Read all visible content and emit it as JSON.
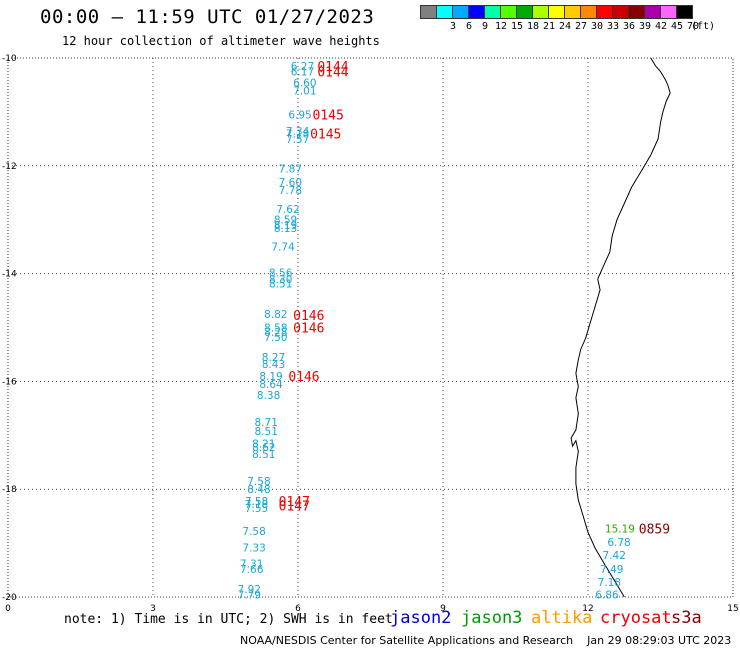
{
  "header": {
    "title": "00:00 – 11:59 UTC 01/27/2023",
    "subtitle": "12 hour collection of altimeter wave heights"
  },
  "legend": {
    "swatches": [
      {
        "color": "#808080",
        "label": ""
      },
      {
        "color": "#00ffff",
        "label": "3"
      },
      {
        "color": "#00aaff",
        "label": "6"
      },
      {
        "color": "#0000ff",
        "label": "9"
      },
      {
        "color": "#00ffaa",
        "label": "12"
      },
      {
        "color": "#55ff00",
        "label": "15"
      },
      {
        "color": "#00aa00",
        "label": "18"
      },
      {
        "color": "#aaff00",
        "label": "21"
      },
      {
        "color": "#ffff00",
        "label": "24"
      },
      {
        "color": "#ffcc00",
        "label": "27"
      },
      {
        "color": "#ff8800",
        "label": "30"
      },
      {
        "color": "#ff0000",
        "label": "33"
      },
      {
        "color": "#cc0000",
        "label": "36"
      },
      {
        "color": "#880000",
        "label": "39"
      },
      {
        "color": "#aa00aa",
        "label": "42"
      },
      {
        "color": "#ff66ff",
        "label": "45"
      },
      {
        "color": "#000000",
        "label": "70"
      }
    ],
    "unit": "(ft)"
  },
  "axes": {
    "x_ticks": [
      "0",
      "3",
      "6",
      "9",
      "12",
      "15"
    ],
    "y_ticks": [
      "-10",
      "-12",
      "-14",
      "-16",
      "-18",
      "-20"
    ]
  },
  "chart_data": {
    "type": "scatter",
    "xlim": [
      0,
      15
    ],
    "ylim": [
      -20,
      -10
    ],
    "grid": true,
    "points": [
      {
        "x": 5.85,
        "y": -10.15,
        "v": "6.27"
      },
      {
        "x": 5.85,
        "y": -10.25,
        "v": "6.17"
      },
      {
        "x": 5.9,
        "y": -10.45,
        "v": "6.60"
      },
      {
        "x": 5.9,
        "y": -10.6,
        "v": "7.01"
      },
      {
        "x": 5.8,
        "y": -11.05,
        "v": "6.95"
      },
      {
        "x": 5.75,
        "y": -11.35,
        "v": "7.34"
      },
      {
        "x": 5.75,
        "y": -11.4,
        "v": "7.18"
      },
      {
        "x": 5.75,
        "y": -11.5,
        "v": "7.57"
      },
      {
        "x": 5.6,
        "y": -12.05,
        "v": "7.87"
      },
      {
        "x": 5.6,
        "y": -12.3,
        "v": "7.60"
      },
      {
        "x": 5.6,
        "y": -12.45,
        "v": "7.78"
      },
      {
        "x": 5.55,
        "y": -12.8,
        "v": "7.62"
      },
      {
        "x": 5.5,
        "y": -13.0,
        "v": "8.59"
      },
      {
        "x": 5.5,
        "y": -13.1,
        "v": "8.19"
      },
      {
        "x": 5.5,
        "y": -13.15,
        "v": "8.13"
      },
      {
        "x": 5.45,
        "y": -13.5,
        "v": "7.74"
      },
      {
        "x": 5.4,
        "y": -13.98,
        "v": "8.56"
      },
      {
        "x": 5.4,
        "y": -14.1,
        "v": "8.30"
      },
      {
        "x": 5.4,
        "y": -14.18,
        "v": "8.51"
      },
      {
        "x": 5.3,
        "y": -14.75,
        "v": "8.82"
      },
      {
        "x": 5.3,
        "y": -15.0,
        "v": "8.58"
      },
      {
        "x": 5.3,
        "y": -15.08,
        "v": "8.28"
      },
      {
        "x": 5.3,
        "y": -15.18,
        "v": "7.50"
      },
      {
        "x": 5.25,
        "y": -15.55,
        "v": "8.27"
      },
      {
        "x": 5.25,
        "y": -15.68,
        "v": "8.43"
      },
      {
        "x": 5.2,
        "y": -15.9,
        "v": "8.19"
      },
      {
        "x": 5.2,
        "y": -16.05,
        "v": "8.64"
      },
      {
        "x": 5.15,
        "y": -16.25,
        "v": "8.38"
      },
      {
        "x": 5.1,
        "y": -16.75,
        "v": "8.71"
      },
      {
        "x": 5.1,
        "y": -16.92,
        "v": "8.51"
      },
      {
        "x": 5.05,
        "y": -17.15,
        "v": "8.21"
      },
      {
        "x": 5.05,
        "y": -17.22,
        "v": "8.62"
      },
      {
        "x": 5.05,
        "y": -17.35,
        "v": "8.51"
      },
      {
        "x": 4.95,
        "y": -17.85,
        "v": "7.58"
      },
      {
        "x": 4.95,
        "y": -18.0,
        "v": "8.48"
      },
      {
        "x": 4.9,
        "y": -18.22,
        "v": "7.58"
      },
      {
        "x": 4.9,
        "y": -18.27,
        "v": "7.18"
      },
      {
        "x": 4.9,
        "y": -18.35,
        "v": "7.55"
      },
      {
        "x": 4.85,
        "y": -18.78,
        "v": "7.58"
      },
      {
        "x": 4.85,
        "y": -19.08,
        "v": "7.33"
      },
      {
        "x": 4.8,
        "y": -19.38,
        "v": "7.31"
      },
      {
        "x": 4.8,
        "y": -19.48,
        "v": "7.66"
      },
      {
        "x": 4.75,
        "y": -19.85,
        "v": "7.92"
      },
      {
        "x": 4.75,
        "y": -19.95,
        "v": "7.79"
      },
      {
        "x": 12.4,
        "y": -18.98,
        "v": "6.78"
      },
      {
        "x": 12.3,
        "y": -19.22,
        "v": "7.42"
      },
      {
        "x": 12.25,
        "y": -19.48,
        "v": "7.49"
      },
      {
        "x": 12.2,
        "y": -19.72,
        "v": "7.18"
      },
      {
        "x": 12.15,
        "y": -19.95,
        "v": "6.86"
      }
    ],
    "jason3_points": [
      {
        "x": 12.35,
        "y": -18.73,
        "v": "15.19"
      }
    ],
    "pass_labels": [
      {
        "x": 6.4,
        "y": -10.15,
        "t": "0144",
        "sat": "cryosat"
      },
      {
        "x": 6.4,
        "y": -10.25,
        "t": "0144",
        "sat": "cryosat"
      },
      {
        "x": 6.3,
        "y": -11.05,
        "t": "0145",
        "sat": "cryosat"
      },
      {
        "x": 6.25,
        "y": -11.4,
        "t": "0145",
        "sat": "cryosat"
      },
      {
        "x": 5.9,
        "y": -14.77,
        "t": "0146",
        "sat": "cryosat"
      },
      {
        "x": 5.9,
        "y": -15.0,
        "t": "0146",
        "sat": "cryosat"
      },
      {
        "x": 5.8,
        "y": -15.9,
        "t": "0146",
        "sat": "cryosat"
      },
      {
        "x": 5.6,
        "y": -18.22,
        "t": "0147",
        "sat": "cryosat"
      },
      {
        "x": 5.6,
        "y": -18.3,
        "t": "0147",
        "sat": "cryosat"
      },
      {
        "x": 13.05,
        "y": -18.73,
        "t": "0859",
        "sat": "s3a"
      }
    ],
    "coastline": [
      [
        13.3,
        -10.0
      ],
      [
        13.4,
        -10.15
      ],
      [
        13.5,
        -10.25
      ],
      [
        13.6,
        -10.4
      ],
      [
        13.65,
        -10.5
      ],
      [
        13.7,
        -10.65
      ],
      [
        13.62,
        -10.8
      ],
      [
        13.55,
        -11.0
      ],
      [
        13.5,
        -11.2
      ],
      [
        13.45,
        -11.5
      ],
      [
        13.3,
        -11.8
      ],
      [
        13.1,
        -12.1
      ],
      [
        12.9,
        -12.4
      ],
      [
        12.75,
        -12.7
      ],
      [
        12.6,
        -13.0
      ],
      [
        12.5,
        -13.3
      ],
      [
        12.45,
        -13.6
      ],
      [
        12.3,
        -13.9
      ],
      [
        12.2,
        -14.1
      ],
      [
        12.25,
        -14.3
      ],
      [
        12.15,
        -14.6
      ],
      [
        12.05,
        -14.9
      ],
      [
        11.95,
        -15.2
      ],
      [
        11.85,
        -15.4
      ],
      [
        11.8,
        -15.6
      ],
      [
        11.75,
        -15.85
      ],
      [
        11.8,
        -16.1
      ],
      [
        11.75,
        -16.3
      ],
      [
        11.8,
        -16.6
      ],
      [
        11.75,
        -16.9
      ],
      [
        11.65,
        -17.05
      ],
      [
        11.68,
        -17.2
      ],
      [
        11.75,
        -17.1
      ],
      [
        11.8,
        -17.3
      ],
      [
        11.75,
        -17.6
      ],
      [
        11.75,
        -17.9
      ],
      [
        11.8,
        -18.2
      ],
      [
        11.9,
        -18.5
      ],
      [
        12.0,
        -18.8
      ],
      [
        12.15,
        -19.1
      ],
      [
        12.35,
        -19.4
      ],
      [
        12.55,
        -19.7
      ],
      [
        12.75,
        -20.0
      ]
    ]
  },
  "footer": {
    "note": "note: 1) Time is in UTC; 2) SWH is in feet",
    "satellites": [
      {
        "name": "jason2",
        "color": "#0000dd"
      },
      {
        "name": "jason3",
        "color": "#009900"
      },
      {
        "name": "altika",
        "color": "#ff9900"
      },
      {
        "name": "cryosat",
        "color": "#ee0000"
      },
      {
        "name": "s3a",
        "color": "#880000"
      }
    ],
    "credit": "NOAA/NESDIS Center for Satellite Applications and Research    Jan 29 08:29:03 UTC 2023"
  },
  "colors": {
    "swh_label": "#1aa6d9",
    "jason3_label": "#33aa00",
    "cryosat_label": "#ee0000",
    "s3a_label": "#880000"
  }
}
